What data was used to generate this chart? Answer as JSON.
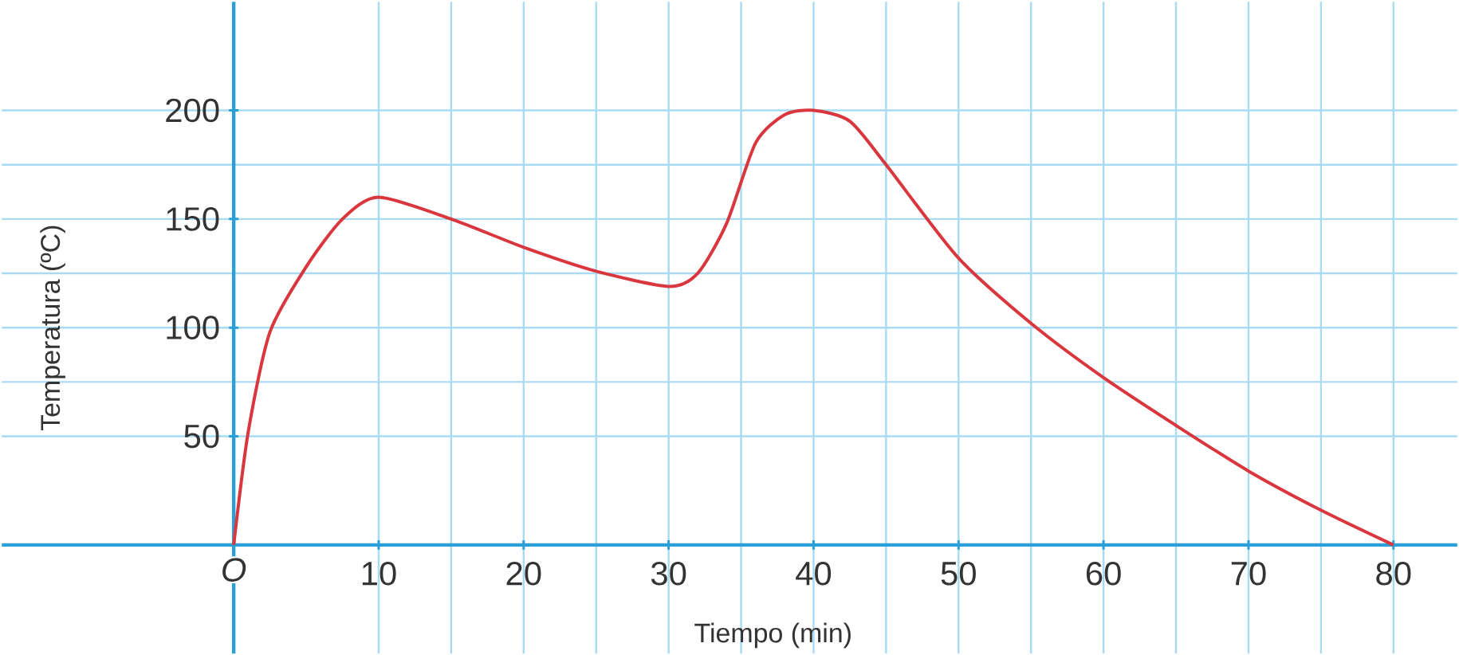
{
  "chart_data": {
    "type": "line",
    "xlabel": "Tiempo (min)",
    "ylabel": "Temperatura (ºC)",
    "x": [
      0,
      1,
      2.5,
      5,
      7.5,
      10,
      15,
      20,
      25,
      30,
      32,
      34,
      36,
      38,
      40,
      42.5,
      45,
      50,
      55,
      60,
      65,
      70,
      75,
      80
    ],
    "series": [
      {
        "color": "#d9363e",
        "values": [
          0,
          52,
          98,
          128,
          150,
          160,
          150,
          137,
          126,
          119,
          125,
          148,
          185,
          198,
          200,
          195,
          175,
          132,
          102,
          77,
          55,
          34,
          16,
          0
        ]
      }
    ],
    "xlim": [
      -16,
      84.4
    ],
    "ylim": [
      -50,
      250
    ],
    "xticks": [
      {
        "value": 0,
        "label": "O"
      },
      10,
      20,
      30,
      40,
      50,
      60,
      70,
      80
    ],
    "yticks": [
      50,
      100,
      150,
      200
    ],
    "grid": true,
    "line_style": "solid"
  }
}
